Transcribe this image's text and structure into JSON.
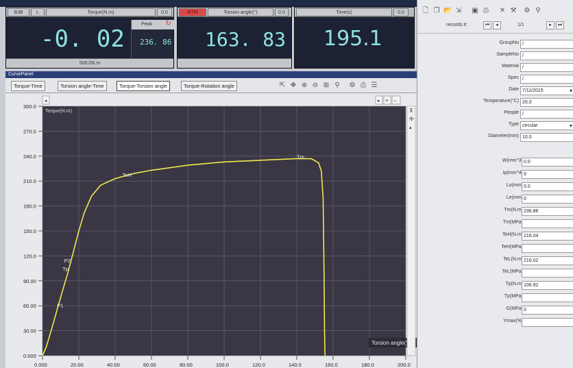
{
  "torque_display": {
    "cell1": "BJB",
    "cell2": "L",
    "title": "Torque(N.m)",
    "counter": "0.0",
    "value": "-0. 02",
    "peak_label": "Peak",
    "peak_value": "236. 86",
    "range": "500.0N.m"
  },
  "angle_display": {
    "mode": "BTM",
    "title": "Torsion angle(°)",
    "counter": "0.0",
    "value": "163. 83"
  },
  "time_display": {
    "title": "Time(s)",
    "counter": "0.0",
    "value": "195.1"
  },
  "curve_panel": {
    "title": "CurvePanel",
    "tabs": [
      "Torque-Time",
      "Torsion angle-Time",
      "Torque-Torsion angle",
      "Torque-Rotation angle"
    ],
    "active_tab": 2
  },
  "toolbar": {
    "records_label": "records #:",
    "records_value": "1/1",
    "icons": [
      "new-icon",
      "copy-icon",
      "open-icon",
      "export-icon",
      "save-icon",
      "print-icon",
      "close-icon",
      "tool-icon",
      "settings-icon",
      "search-icon"
    ]
  },
  "fields_top": [
    {
      "label": "GroupNo",
      "value": "/"
    },
    {
      "label": "SampleNo",
      "value": "/"
    },
    {
      "label": "Material",
      "value": "/"
    },
    {
      "label": "Spec",
      "value": "/"
    },
    {
      "label": "Date",
      "value": "7/11/2015"
    },
    {
      "label": "Temperature(°C)",
      "value": "20.0"
    },
    {
      "label": "People",
      "value": "/"
    },
    {
      "label": "Type",
      "value": "circular"
    },
    {
      "label": "Diameter(mm)",
      "value": "10.0"
    }
  ],
  "fields_bottom": [
    {
      "label": "W(mm^3)",
      "value": "0.0"
    },
    {
      "label": "Ip(mm^4)",
      "value": "0"
    },
    {
      "label": "Lo(mm)",
      "value": "0.0"
    },
    {
      "label": "Le(mm)",
      "value": "0"
    },
    {
      "label": "Tm(N.m)",
      "value": "236.86"
    },
    {
      "label": "Tm(MPa)",
      "value": ""
    },
    {
      "label": "TeH(N.m)",
      "value": "216.04"
    },
    {
      "label": "TeH(MPa)",
      "value": ""
    },
    {
      "label": "TeL(N.m)",
      "value": "216.02"
    },
    {
      "label": "TeL(MPa)",
      "value": ""
    },
    {
      "label": "Tp(N.m)",
      "value": "106.92"
    },
    {
      "label": "Tp(MPa)",
      "value": ""
    },
    {
      "label": "G(MPa)",
      "value": "0"
    },
    {
      "label": "Ymax(%)",
      "value": ""
    }
  ],
  "chart_data": {
    "type": "line",
    "ylabel": "Torque(N.m)",
    "xlabel": "Torsion angle(°)",
    "xlim": [
      0,
      200
    ],
    "ylim": [
      0,
      300
    ],
    "x_ticks": [
      "0.000",
      "20.00",
      "40.00",
      "60.00",
      "80.00",
      "100.0",
      "120.0",
      "140.0",
      "160.0",
      "180.0",
      "200.0"
    ],
    "y_ticks": [
      "0.000",
      "30.00",
      "60.00",
      "90.00",
      "120.0",
      "150.0",
      "180.0",
      "210.0",
      "240.0",
      "270.0",
      "300.0"
    ],
    "grid": true,
    "line_color": "#f2e94e",
    "series": [
      {
        "x": [
          0,
          2,
          5,
          8,
          11,
          14,
          17,
          20,
          23,
          27,
          32,
          40,
          50,
          60,
          70,
          80,
          90,
          100,
          110,
          120,
          130,
          140,
          148,
          152,
          153.5,
          154.5,
          155,
          155.3,
          155.5
        ],
        "y": [
          0,
          10,
          32,
          55,
          78,
          100,
          125,
          150,
          172,
          192,
          205,
          213,
          219,
          223,
          226,
          229,
          231,
          233,
          234,
          235,
          236,
          237,
          236.9,
          232,
          222,
          190,
          100,
          30,
          0
        ]
      }
    ],
    "annotations": [
      {
        "label": "P1",
        "x": 8,
        "y": 58
      },
      {
        "label": "Tp",
        "x": 11,
        "y": 102
      },
      {
        "label": "P2",
        "x": 12,
        "y": 112
      },
      {
        "label": "TeH",
        "x": 44,
        "y": 215
      },
      {
        "label": "Tm",
        "x": 140,
        "y": 237
      }
    ]
  }
}
